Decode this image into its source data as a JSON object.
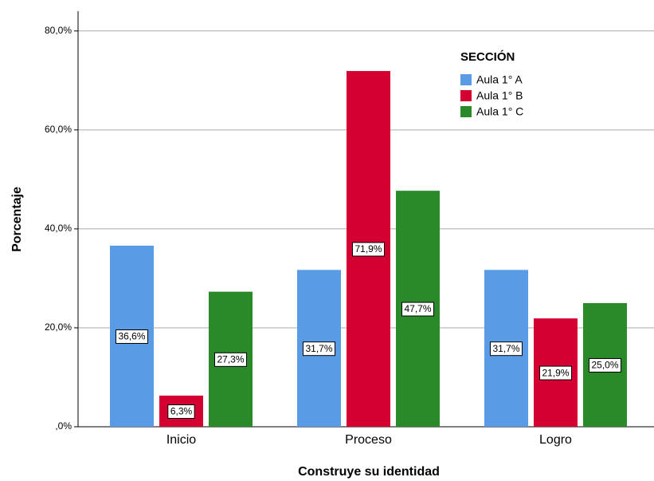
{
  "chart_data": {
    "type": "bar",
    "x_label": "Construye su identidad",
    "y_label": "Porcentaje",
    "legend_title": "SECCIÓN",
    "legend_position": "upper right",
    "grid": true,
    "categories": [
      "Inicio",
      "Proceso",
      "Logro"
    ],
    "series": [
      {
        "name": "Aula 1° A",
        "color": "#5a9be6",
        "values": [
          36.6,
          31.7,
          31.7
        ],
        "value_labels": [
          "36,6%",
          "31,7%",
          "31,7%"
        ]
      },
      {
        "name": "Aula 1° B",
        "color": "#d50032",
        "values": [
          6.3,
          71.9,
          21.9
        ],
        "value_labels": [
          "6,3%",
          "71,9%",
          "21,9%"
        ]
      },
      {
        "name": "Aula 1° C",
        "color": "#2a8a2a",
        "values": [
          27.3,
          47.7,
          25.0
        ],
        "value_labels": [
          "27,3%",
          "47,7%",
          "25,0%"
        ]
      }
    ],
    "ylim": [
      0,
      84
    ],
    "yticks": [
      {
        "value": 0,
        "label": ",0%"
      },
      {
        "value": 20,
        "label": "20,0%"
      },
      {
        "value": 40,
        "label": "40,0%"
      },
      {
        "value": 60,
        "label": "60,0%"
      },
      {
        "value": 80,
        "label": "80,0%"
      }
    ]
  }
}
